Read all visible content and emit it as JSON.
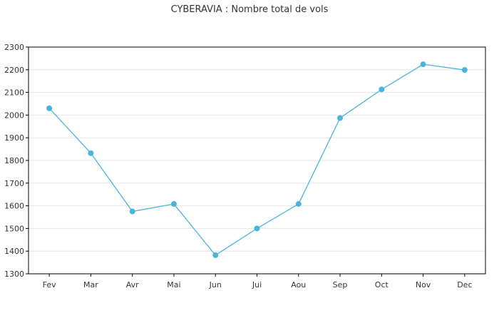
{
  "chart_data": {
    "type": "line",
    "title": "CYBERAVIA : Nombre total de vols",
    "xlabel": "",
    "ylabel": "",
    "categories": [
      "Fev",
      "Mar",
      "Avr",
      "Mai",
      "Jun",
      "Jui",
      "Aou",
      "Sep",
      "Oct",
      "Nov",
      "Dec"
    ],
    "series": [
      {
        "values": [
          2030,
          1832,
          1575,
          1608,
          1382,
          1500,
          1608,
          1987,
          2113,
          2224,
          2199
        ]
      }
    ],
    "ylim": [
      1300,
      2300
    ],
    "yticks": [
      1300,
      1400,
      1500,
      1600,
      1700,
      1800,
      1900,
      2000,
      2100,
      2200,
      2300
    ],
    "grid": "horizontal",
    "legend": "none",
    "colors": {
      "line": "#4ab5d9",
      "marker": "#4ab5d9",
      "grid": "#e6e6e6",
      "axis": "#000000"
    }
  }
}
